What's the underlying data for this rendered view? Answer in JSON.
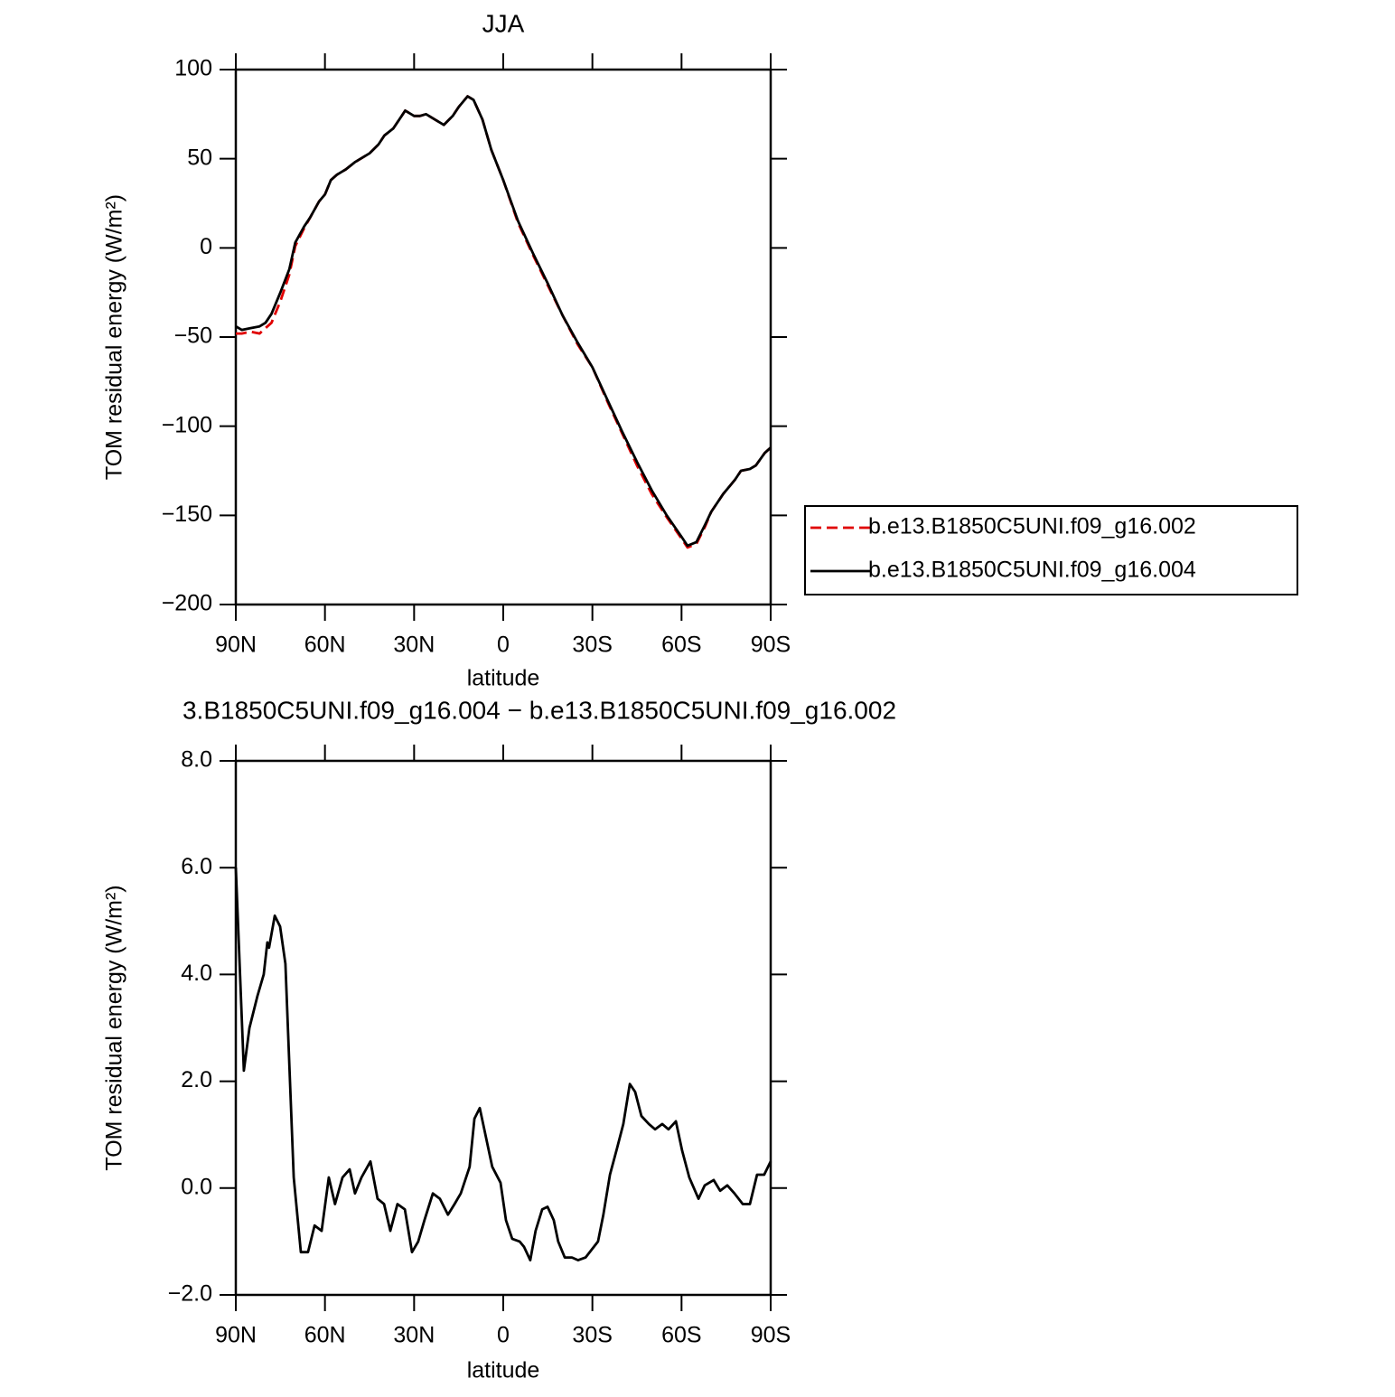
{
  "chart_data": [
    {
      "type": "line",
      "title": "JJA",
      "xlabel": "latitude",
      "ylabel": "TOM residual energy (W/m²)",
      "x": [
        90,
        88,
        85,
        82,
        80,
        78,
        75,
        72,
        70,
        67,
        65,
        62,
        60,
        58,
        56,
        53,
        50,
        45,
        42,
        40,
        37,
        35,
        33,
        30,
        28,
        26,
        23,
        20,
        17,
        15,
        12,
        10,
        7,
        4,
        0,
        -5,
        -10,
        -15,
        -20,
        -25,
        -30,
        -35,
        -40,
        -45,
        -50,
        -55,
        -60,
        -62,
        -65,
        -68,
        -70,
        -74,
        -78,
        -80,
        -83,
        -85,
        -88,
        -90
      ],
      "series": [
        {
          "name": "b.e13.B1850C5UNI.f09_g16.002",
          "color": "#e00000",
          "dash": true,
          "values": [
            -48,
            -48,
            -47,
            -48,
            -45,
            -42,
            -30,
            -15,
            1,
            11,
            17,
            26,
            30,
            38,
            41,
            44,
            48,
            53,
            58,
            63,
            67,
            72,
            77,
            74,
            74,
            75,
            72,
            69,
            74,
            79,
            85,
            83,
            72,
            55,
            38,
            14,
            -4,
            -21,
            -38,
            -54,
            -67,
            -86,
            -104,
            -122,
            -138,
            -151,
            -163,
            -168,
            -166,
            -156,
            -148,
            -138,
            -130,
            -125,
            -124,
            -122,
            -115,
            -112
          ]
        },
        {
          "name": "b.e13.B1850C5UNI.f09_g16.004",
          "color": "#000000",
          "dash": false,
          "values": [
            -44,
            -46,
            -45,
            -44,
            -42,
            -37,
            -25,
            -12,
            3,
            12,
            17,
            26,
            30,
            38,
            41,
            44,
            48,
            53,
            58,
            63,
            67,
            72,
            77,
            74,
            74,
            75,
            72,
            69,
            74,
            79,
            85,
            83,
            72,
            55,
            38,
            15,
            -3,
            -20,
            -38,
            -53,
            -67,
            -85,
            -103,
            -120,
            -136,
            -150,
            -162,
            -167,
            -165,
            -155,
            -148,
            -138,
            -130,
            -125,
            -124,
            -122,
            -115,
            -112
          ]
        }
      ],
      "xlim": [
        90,
        -90
      ],
      "xticks": [
        {
          "value": 90,
          "label": "90N"
        },
        {
          "value": 60,
          "label": "60N"
        },
        {
          "value": 30,
          "label": "30N"
        },
        0,
        {
          "value": -30,
          "label": "30S"
        },
        {
          "value": -60,
          "label": "60S"
        },
        {
          "value": -90,
          "label": "90S"
        }
      ],
      "ylim": [
        -200,
        100
      ],
      "yticks": [
        {
          "value": -200,
          "label": "−200"
        },
        {
          "value": -150,
          "label": "−150"
        },
        {
          "value": -100,
          "label": "−100"
        },
        {
          "value": -50,
          "label": "−50"
        },
        0,
        50,
        100
      ],
      "legend": "right"
    },
    {
      "type": "line",
      "title": "3.B1850C5UNI.f09_g16.004 − b.e13.B1850C5UNI.f09_g16.002",
      "xlabel": "latitude",
      "ylabel": "TOM residual energy (W/m²)",
      "x": [
        90,
        87.3,
        85.4,
        82.7,
        80.6,
        79.4,
        78.8,
        76.9,
        75.1,
        73.3,
        70.5,
        68.1,
        65.7,
        63.5,
        61.1,
        58.7,
        56.6,
        54.1,
        51.7,
        49.9,
        47.7,
        44.7,
        42.3,
        40.1,
        38,
        35.6,
        33.1,
        30.7,
        28.6,
        26.5,
        23.7,
        21.3,
        18.6,
        16.4,
        14.3,
        11.3,
        9.7,
        7.9,
        5.8,
        3.7,
        0.9,
        -0.9,
        -3,
        -5.5,
        -7,
        -9.1,
        -10.9,
        -13.1,
        -14.9,
        -17,
        -18.5,
        -20.7,
        -23.1,
        -25.2,
        -27.7,
        -29.8,
        -31.9,
        -33.7,
        -35.9,
        -38.3,
        -40.4,
        -42.6,
        -44.4,
        -46.5,
        -49,
        -51.1,
        -53.5,
        -55.6,
        -58.1,
        -60.2,
        -62.6,
        -65.7,
        -67.8,
        -70.8,
        -73,
        -75.4,
        -77.8,
        -80.6,
        -83,
        -85.4,
        -87.8,
        -90
      ],
      "series": [
        {
          "name": null,
          "color": "#000000",
          "dash": false,
          "values": [
            6.0,
            2.2,
            3.0,
            3.6,
            4.0,
            4.6,
            4.5,
            5.1,
            4.9,
            4.2,
            0.2,
            -1.2,
            -1.2,
            -0.7,
            -0.8,
            0.2,
            -0.3,
            0.2,
            0.35,
            -0.1,
            0.2,
            0.5,
            -0.2,
            -0.3,
            -0.8,
            -0.3,
            -0.4,
            -1.2,
            -1.0,
            -0.6,
            -0.1,
            -0.2,
            -0.5,
            -0.3,
            -0.1,
            0.4,
            1.3,
            1.5,
            0.95,
            0.4,
            0.1,
            -0.6,
            -0.95,
            -1.0,
            -1.1,
            -1.35,
            -0.8,
            -0.4,
            -0.35,
            -0.6,
            -1.0,
            -1.3,
            -1.3,
            -1.35,
            -1.3,
            -1.15,
            -1.0,
            -0.5,
            0.25,
            0.75,
            1.2,
            1.95,
            1.8,
            1.35,
            1.2,
            1.1,
            1.2,
            1.1,
            1.25,
            0.7,
            0.2,
            -0.2,
            0.05,
            0.15,
            -0.05,
            0.05,
            -0.1,
            -0.3,
            -0.3,
            0.25,
            0.25,
            0.5
          ]
        }
      ],
      "xlim": [
        90,
        -90
      ],
      "xticks": [
        {
          "value": 90,
          "label": "90N"
        },
        {
          "value": 60,
          "label": "60N"
        },
        {
          "value": 30,
          "label": "30N"
        },
        0,
        {
          "value": -30,
          "label": "30S"
        },
        {
          "value": -60,
          "label": "60S"
        },
        {
          "value": -90,
          "label": "90S"
        }
      ],
      "ylim": [
        -2,
        8
      ],
      "yticks": [
        {
          "value": -2,
          "label": "−2.0"
        },
        {
          "value": 0,
          "label": "0.0"
        },
        {
          "value": 2,
          "label": "2.0"
        },
        {
          "value": 4,
          "label": "4.0"
        },
        {
          "value": 6,
          "label": "6.0"
        },
        {
          "value": 8,
          "label": "8.0"
        }
      ]
    }
  ]
}
